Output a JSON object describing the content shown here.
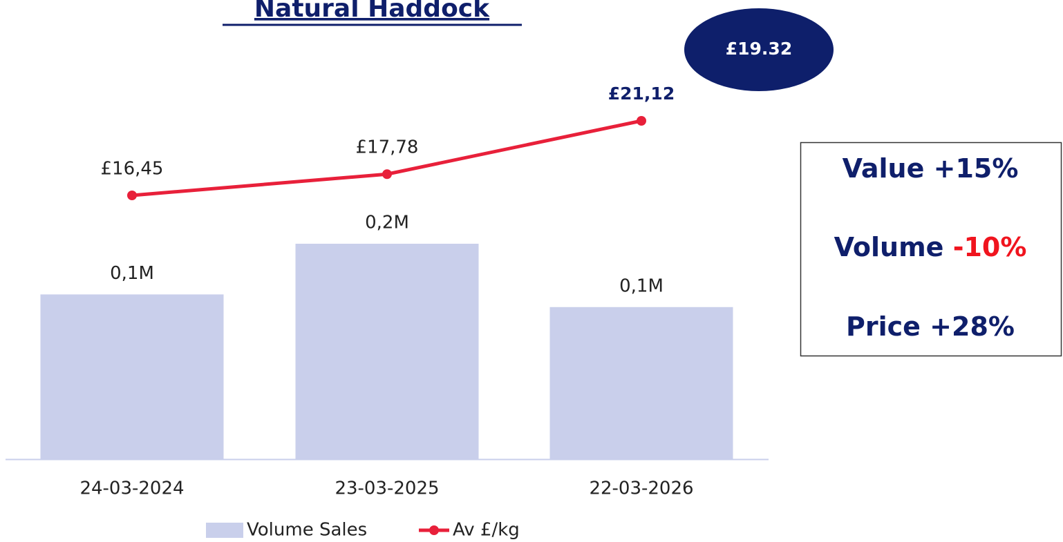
{
  "chart_data": {
    "type": "bar-line",
    "title": "Natural Haddock",
    "categories": [
      "24-03-2024",
      "23-03-2025",
      "22-03-2026"
    ],
    "series": [
      {
        "name": "Volume Sales",
        "type": "bar",
        "color": "#c9cfeb",
        "values": [
          0.13,
          0.17,
          0.12
        ],
        "value_labels": [
          "0,1M",
          "0,2M",
          "0,1M"
        ]
      },
      {
        "name": "Av £/kg",
        "type": "line",
        "color": "#e8203a",
        "values": [
          16.45,
          17.78,
          21.12
        ],
        "value_labels": [
          "£16,45",
          "£17,78",
          "£21,12"
        ]
      }
    ],
    "annotation": "£19.32",
    "kpis": [
      {
        "label": "Value",
        "change": "+15%",
        "color": "#0f1f6b"
      },
      {
        "label": "Volume",
        "change": "-10%",
        "color": "#f0141e"
      },
      {
        "label": "Price",
        "change": "+28%",
        "color": "#0f1f6b"
      }
    ]
  }
}
